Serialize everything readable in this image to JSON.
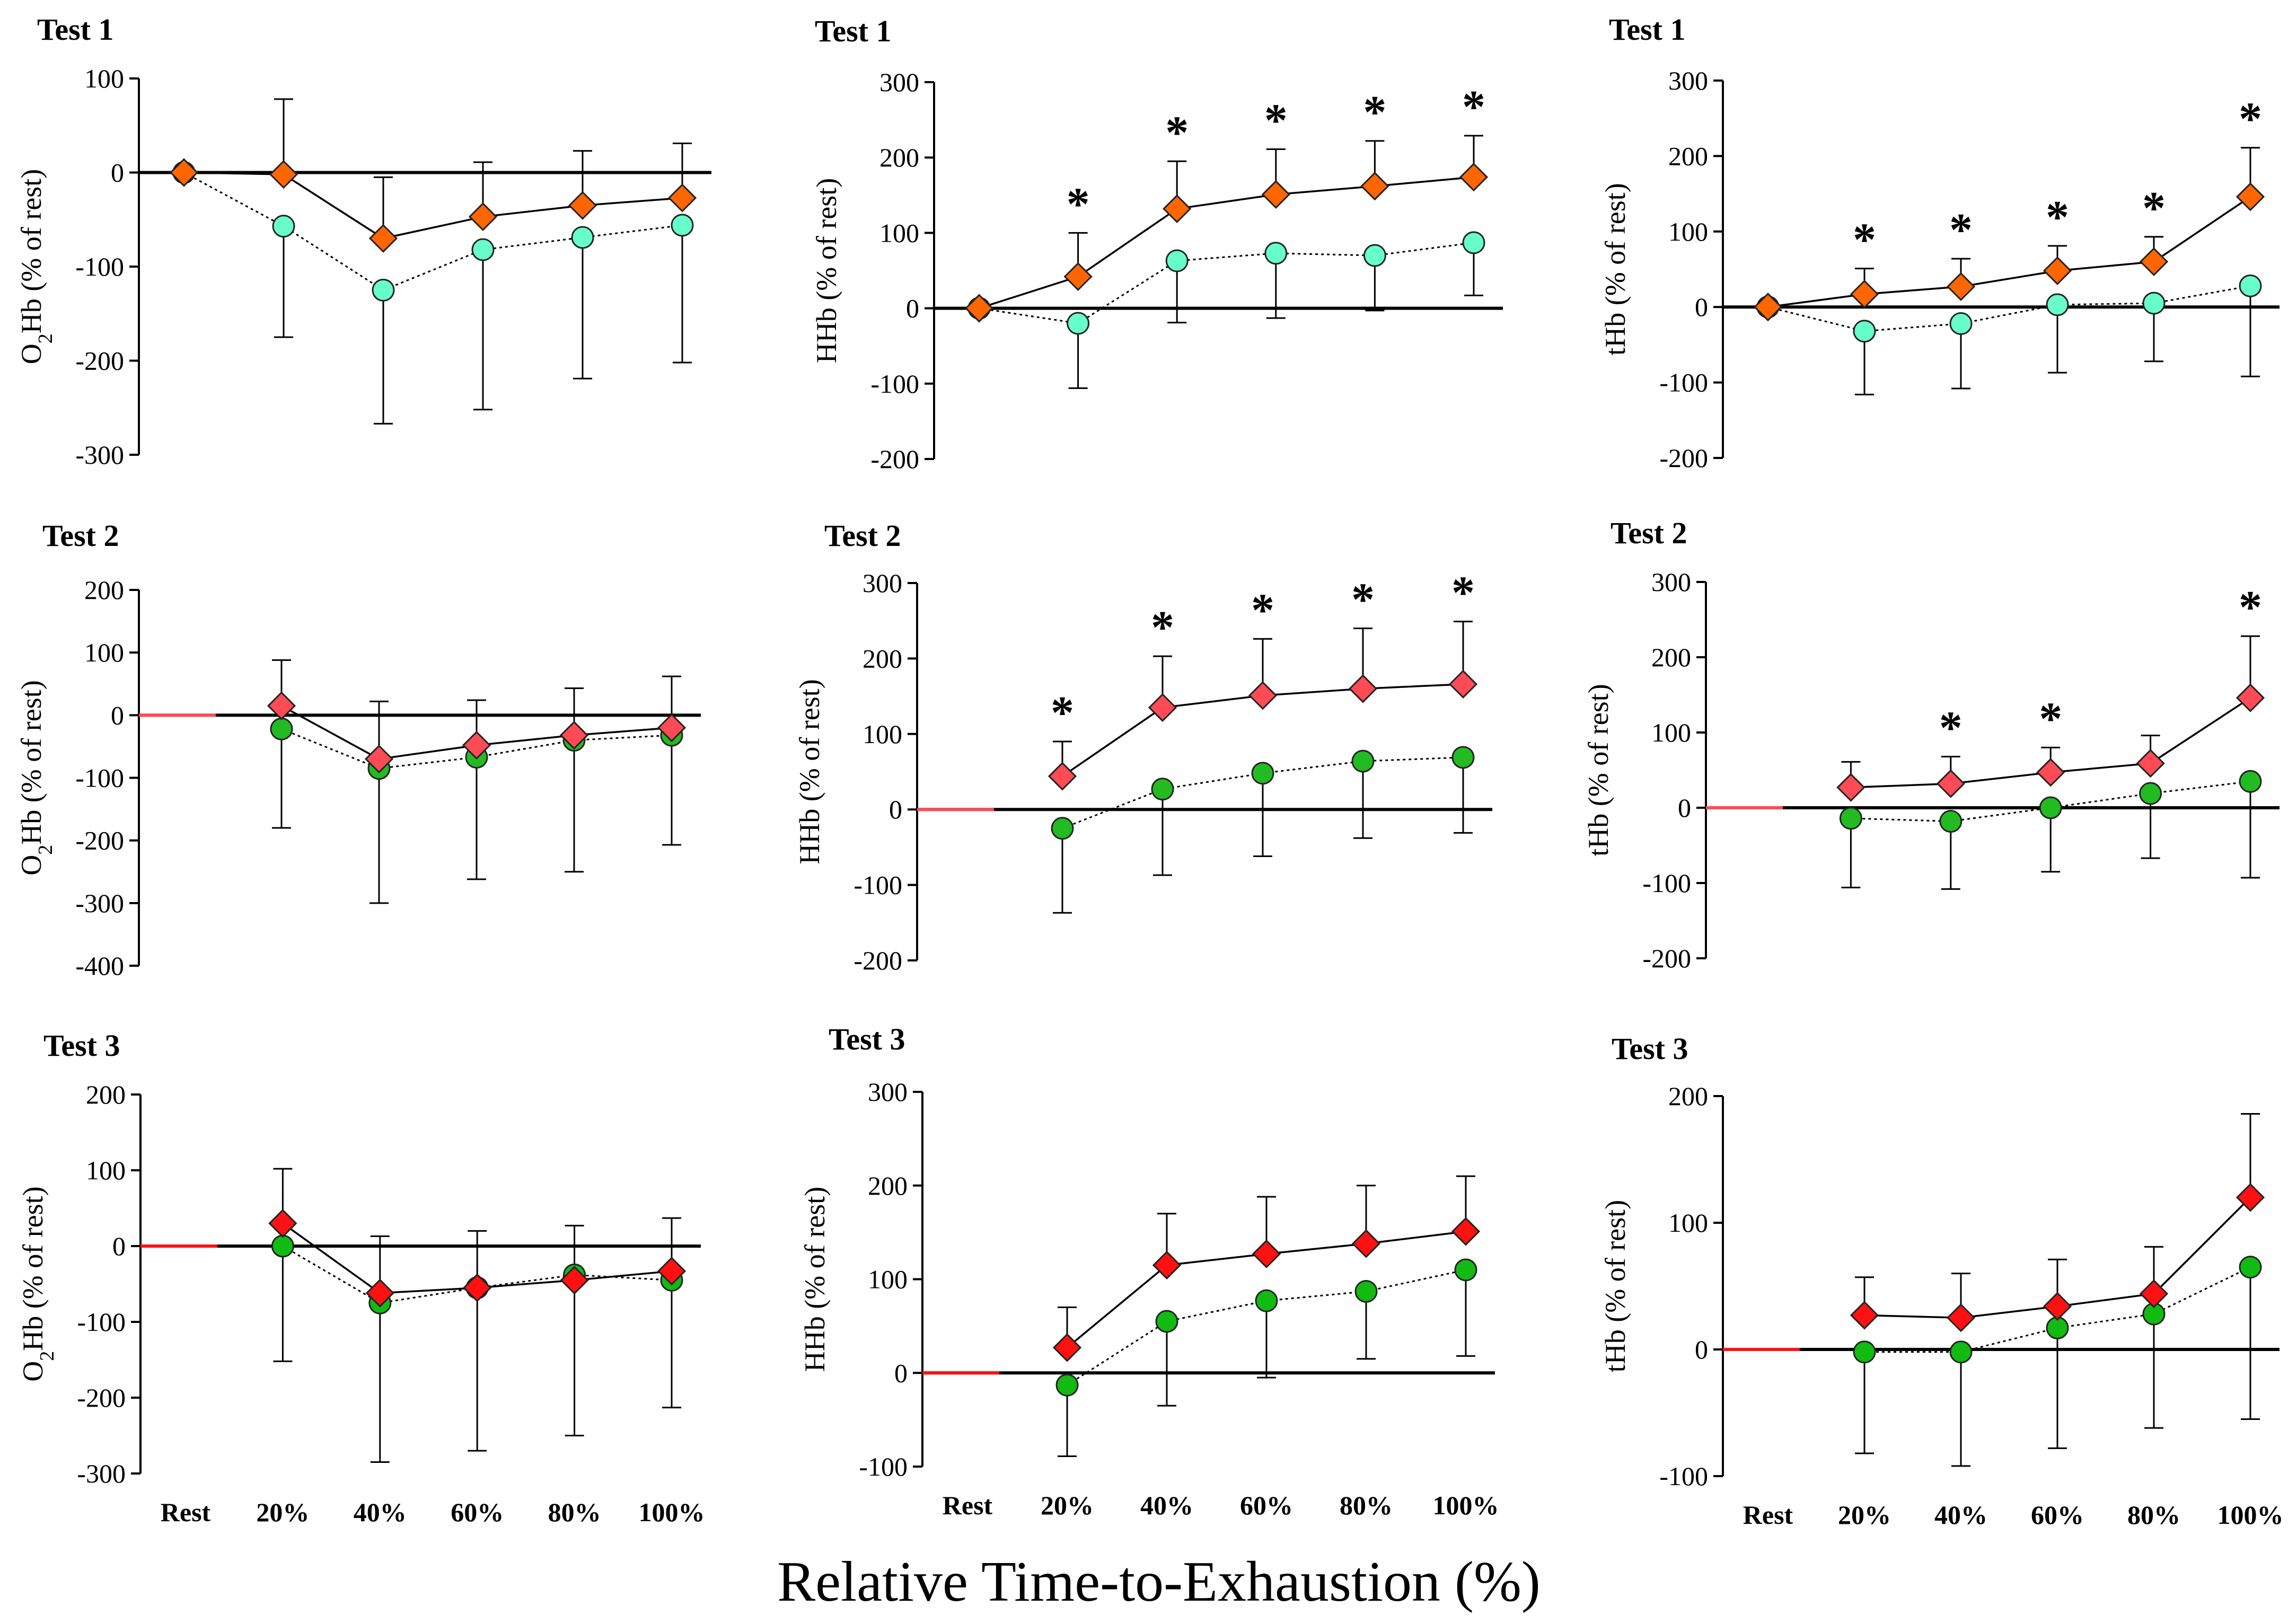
{
  "figure": {
    "x_title": "Relative Time-to-Exhaustion (%)",
    "categories": [
      "Rest",
      "20%",
      "40%",
      "60%",
      "80%",
      "100%"
    ]
  },
  "colors": {
    "test1_diamond": "#ff6600",
    "test1_circle": "#66ffcc",
    "test2_diamond": "#ff4b55",
    "test2_circle": "#22bb22",
    "test3_diamond": "#ff1111",
    "test3_circle": "#11bb11"
  },
  "chart_data": [
    {
      "type": "line",
      "title": "Test 1",
      "ylabel_main": "O",
      "ylabel_sub": "2",
      "ylabel_rest": "Hb (% of rest)",
      "ylim": [
        -300,
        100
      ],
      "yticks": [
        100,
        0,
        -100,
        -200,
        -300
      ],
      "categories": [
        "Rest",
        "20%",
        "40%",
        "60%",
        "80%",
        "100%"
      ],
      "show_categories": false,
      "series": [
        {
          "name": "diamond",
          "marker": "diamond",
          "line": "solid",
          "values": [
            0,
            -2,
            -70,
            -47,
            -35,
            -27
          ],
          "err_up": [
            0,
            80,
            65,
            58,
            58,
            58
          ]
        },
        {
          "name": "circle",
          "marker": "circle",
          "line": "dotted",
          "values": [
            0,
            -57,
            -125,
            -82,
            -69,
            -56
          ],
          "err_down": [
            0,
            118,
            142,
            170,
            150,
            146
          ]
        }
      ],
      "significance": []
    },
    {
      "type": "line",
      "title": "Test 1",
      "ylabel": "HHb (% of rest)",
      "ylim": [
        -200,
        300
      ],
      "yticks": [
        300,
        200,
        100,
        0,
        -100,
        -200
      ],
      "categories": [
        "Rest",
        "20%",
        "40%",
        "60%",
        "80%",
        "100%"
      ],
      "show_categories": false,
      "series": [
        {
          "name": "diamond",
          "marker": "diamond",
          "line": "solid",
          "values": [
            0,
            42,
            132,
            151,
            162,
            174
          ],
          "err_up": [
            0,
            58,
            63,
            60,
            60,
            55
          ]
        },
        {
          "name": "circle",
          "marker": "circle",
          "line": "dotted",
          "values": [
            0,
            -20,
            63,
            73,
            70,
            87
          ],
          "err_down": [
            0,
            86,
            82,
            86,
            73,
            70
          ]
        }
      ],
      "significance": [
        "20%",
        "40%",
        "60%",
        "80%",
        "100%"
      ]
    },
    {
      "type": "line",
      "title": "Test 1",
      "ylabel": "tHb (% of rest)",
      "ylim": [
        -200,
        300
      ],
      "yticks": [
        300,
        200,
        100,
        0,
        -100,
        -200
      ],
      "categories": [
        "Rest",
        "20%",
        "40%",
        "60%",
        "80%",
        "100%"
      ],
      "show_categories": false,
      "series": [
        {
          "name": "diamond",
          "marker": "diamond",
          "line": "solid",
          "values": [
            0,
            17,
            27,
            48,
            60,
            146
          ],
          "err_up": [
            0,
            34,
            37,
            33,
            33,
            65
          ]
        },
        {
          "name": "circle",
          "marker": "circle",
          "line": "dotted",
          "values": [
            0,
            -32,
            -22,
            3,
            5,
            28
          ],
          "err_down": [
            0,
            84,
            86,
            90,
            77,
            120
          ]
        }
      ],
      "significance": [
        "20%",
        "40%",
        "60%",
        "80%",
        "100%"
      ]
    },
    {
      "type": "line",
      "title": "Test 2",
      "ylabel_main": "O",
      "ylabel_sub": "2",
      "ylabel_rest": "Hb (% of rest)",
      "ylim": [
        -400,
        200
      ],
      "yticks": [
        200,
        100,
        0,
        -100,
        -200,
        -300,
        -400
      ],
      "categories": [
        "Rest",
        "20%",
        "40%",
        "60%",
        "80%",
        "100%"
      ],
      "show_categories": false,
      "series": [
        {
          "name": "diamond",
          "marker": "diamond",
          "line": "solid",
          "values": [
            null,
            15,
            -70,
            -48,
            -32,
            -20
          ],
          "err_up": [
            0,
            73,
            92,
            72,
            75,
            82
          ]
        },
        {
          "name": "circle",
          "marker": "circle",
          "line": "dotted",
          "values": [
            null,
            -22,
            -85,
            -67,
            -40,
            -32
          ],
          "err_down": [
            0,
            158,
            215,
            195,
            210,
            175
          ]
        }
      ],
      "significance": []
    },
    {
      "type": "line",
      "title": "Test 2",
      "ylabel": "HHb (% of rest)",
      "ylim": [
        -200,
        300
      ],
      "yticks": [
        300,
        200,
        100,
        0,
        -100,
        -200
      ],
      "categories": [
        "Rest",
        "20%",
        "40%",
        "60%",
        "80%",
        "100%"
      ],
      "show_categories": false,
      "series": [
        {
          "name": "diamond",
          "marker": "diamond",
          "line": "solid",
          "values": [
            null,
            44,
            135,
            151,
            160,
            166
          ],
          "err_up": [
            0,
            46,
            68,
            75,
            80,
            83
          ]
        },
        {
          "name": "circle",
          "marker": "circle",
          "line": "dotted",
          "values": [
            null,
            -25,
            27,
            48,
            64,
            69
          ],
          "err_down": [
            0,
            112,
            114,
            110,
            102,
            100
          ]
        }
      ],
      "significance": [
        "20%",
        "40%",
        "60%",
        "80%",
        "100%"
      ]
    },
    {
      "type": "line",
      "title": "Test 2",
      "ylabel": "tHb (% of rest)",
      "ylim": [
        -200,
        300
      ],
      "yticks": [
        300,
        200,
        100,
        0,
        -100,
        -200
      ],
      "categories": [
        "Rest",
        "20%",
        "40%",
        "60%",
        "80%",
        "100%"
      ],
      "show_categories": false,
      "series": [
        {
          "name": "diamond",
          "marker": "diamond",
          "line": "solid",
          "values": [
            null,
            27,
            32,
            47,
            59,
            146
          ],
          "err_up": [
            0,
            34,
            36,
            33,
            37,
            82
          ]
        },
        {
          "name": "circle",
          "marker": "circle",
          "line": "dotted",
          "values": [
            null,
            -14,
            -18,
            0,
            19,
            35
          ],
          "err_down": [
            0,
            92,
            90,
            85,
            86,
            128
          ]
        }
      ],
      "significance": [
        "40%",
        "60%",
        "100%"
      ]
    },
    {
      "type": "line",
      "title": "Test 3",
      "ylabel_main": "O",
      "ylabel_sub": "2",
      "ylabel_rest": "Hb (% of rest)",
      "ylim": [
        -300,
        200
      ],
      "yticks": [
        200,
        100,
        0,
        -100,
        -200,
        -300
      ],
      "categories": [
        "Rest",
        "20%",
        "40%",
        "60%",
        "80%",
        "100%"
      ],
      "show_categories": true,
      "series": [
        {
          "name": "diamond",
          "marker": "diamond",
          "line": "solid",
          "values": [
            null,
            30,
            -62,
            -55,
            -45,
            -33
          ],
          "err_up": [
            0,
            72,
            75,
            75,
            72,
            70
          ]
        },
        {
          "name": "circle",
          "marker": "circle",
          "line": "dotted",
          "values": [
            null,
            0,
            -75,
            -55,
            -38,
            -45
          ],
          "err_down": [
            0,
            152,
            210,
            215,
            212,
            168
          ]
        }
      ],
      "significance": []
    },
    {
      "type": "line",
      "title": "Test 3",
      "ylabel": "HHb (% of rest)",
      "ylim": [
        -100,
        300
      ],
      "yticks": [
        300,
        200,
        100,
        0,
        -100
      ],
      "categories": [
        "Rest",
        "20%",
        "40%",
        "60%",
        "80%",
        "100%"
      ],
      "show_categories": true,
      "series": [
        {
          "name": "diamond",
          "marker": "diamond",
          "line": "solid",
          "values": [
            null,
            27,
            115,
            127,
            138,
            151
          ],
          "err_up": [
            0,
            43,
            55,
            61,
            62,
            59
          ]
        },
        {
          "name": "circle",
          "marker": "circle",
          "line": "dotted",
          "values": [
            null,
            -13,
            55,
            77,
            87,
            110
          ],
          "err_down": [
            0,
            76,
            90,
            82,
            72,
            92
          ]
        }
      ],
      "significance": []
    },
    {
      "type": "line",
      "title": "Test 3",
      "ylabel": "tHb (% of rest)",
      "ylim": [
        -100,
        200
      ],
      "yticks": [
        200,
        100,
        0,
        -100
      ],
      "categories": [
        "Rest",
        "20%",
        "40%",
        "60%",
        "80%",
        "100%"
      ],
      "show_categories": true,
      "series": [
        {
          "name": "diamond",
          "marker": "diamond",
          "line": "solid",
          "values": [
            null,
            27,
            25,
            34,
            44,
            120
          ],
          "err_up": [
            0,
            30,
            35,
            37,
            37,
            66
          ]
        },
        {
          "name": "circle",
          "marker": "circle",
          "line": "dotted",
          "values": [
            null,
            -2,
            -2,
            17,
            28,
            65
          ],
          "err_down": [
            0,
            80,
            90,
            95,
            90,
            120
          ]
        }
      ],
      "significance": []
    }
  ]
}
